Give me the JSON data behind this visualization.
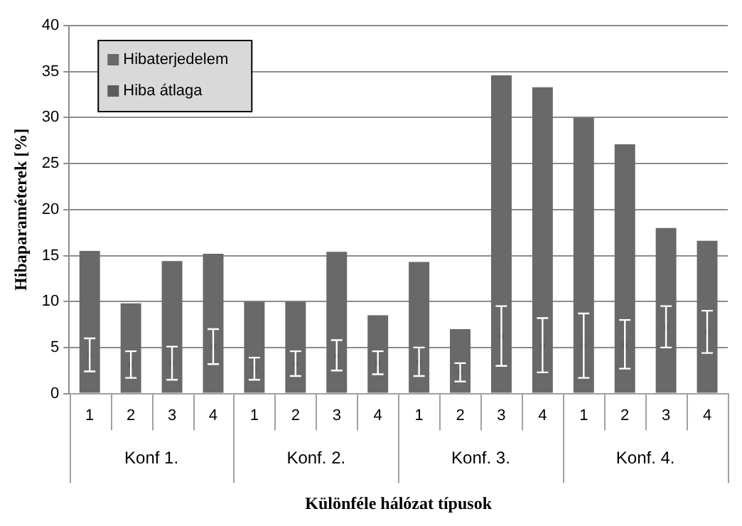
{
  "chart_data": {
    "type": "bar",
    "xlabel": "Különféle hálózat típusok",
    "ylabel": "Hibaparaméterek [%]",
    "categories": [
      "1",
      "2",
      "3",
      "4",
      "1",
      "2",
      "3",
      "4",
      "1",
      "2",
      "3",
      "4",
      "1",
      "2",
      "3",
      "4"
    ],
    "annotations": [
      "Konf 1.",
      "Konf. 2.",
      "Konf. 3.",
      "Konf. 4."
    ],
    "series": [
      {
        "name": "Hibaterjedelem",
        "color": "#696969",
        "values": [
          15.5,
          9.8,
          14.4,
          15.2,
          10,
          10,
          15.4,
          8.5,
          14.3,
          7,
          34.6,
          33.3,
          30,
          27.1,
          18,
          16.6
        ]
      },
      {
        "name": "Hiba átlaga",
        "type": "scatter",
        "marker": "square",
        "color": "#5c5c5c",
        "values": [
          4.2,
          3.1,
          3.3,
          5.1,
          2.7,
          3.2,
          4.1,
          3.3,
          3.4,
          2.3,
          6.2,
          5.2,
          5.2,
          5.3,
          7.2,
          6.7
        ],
        "errors": [
          [
            2.4,
            6
          ],
          [
            1.7,
            4.6
          ],
          [
            1.5,
            5.1
          ],
          [
            3.2,
            7
          ],
          [
            1.5,
            3.9
          ],
          [
            1.9,
            4.6
          ],
          [
            2.5,
            5.8
          ],
          [
            2.1,
            4.6
          ],
          [
            1.9,
            5
          ],
          [
            1.3,
            3.3
          ],
          [
            3,
            9.5
          ],
          [
            2.3,
            8.2
          ],
          [
            1.7,
            8.7
          ],
          [
            2.7,
            8
          ],
          [
            5,
            9.5
          ],
          [
            4.4,
            9
          ]
        ]
      }
    ],
    "ylim": [
      0,
      40
    ],
    "yticks": [
      0,
      5,
      10,
      15,
      20,
      25,
      30,
      35,
      40
    ],
    "grid": "y",
    "legend": "top left"
  }
}
